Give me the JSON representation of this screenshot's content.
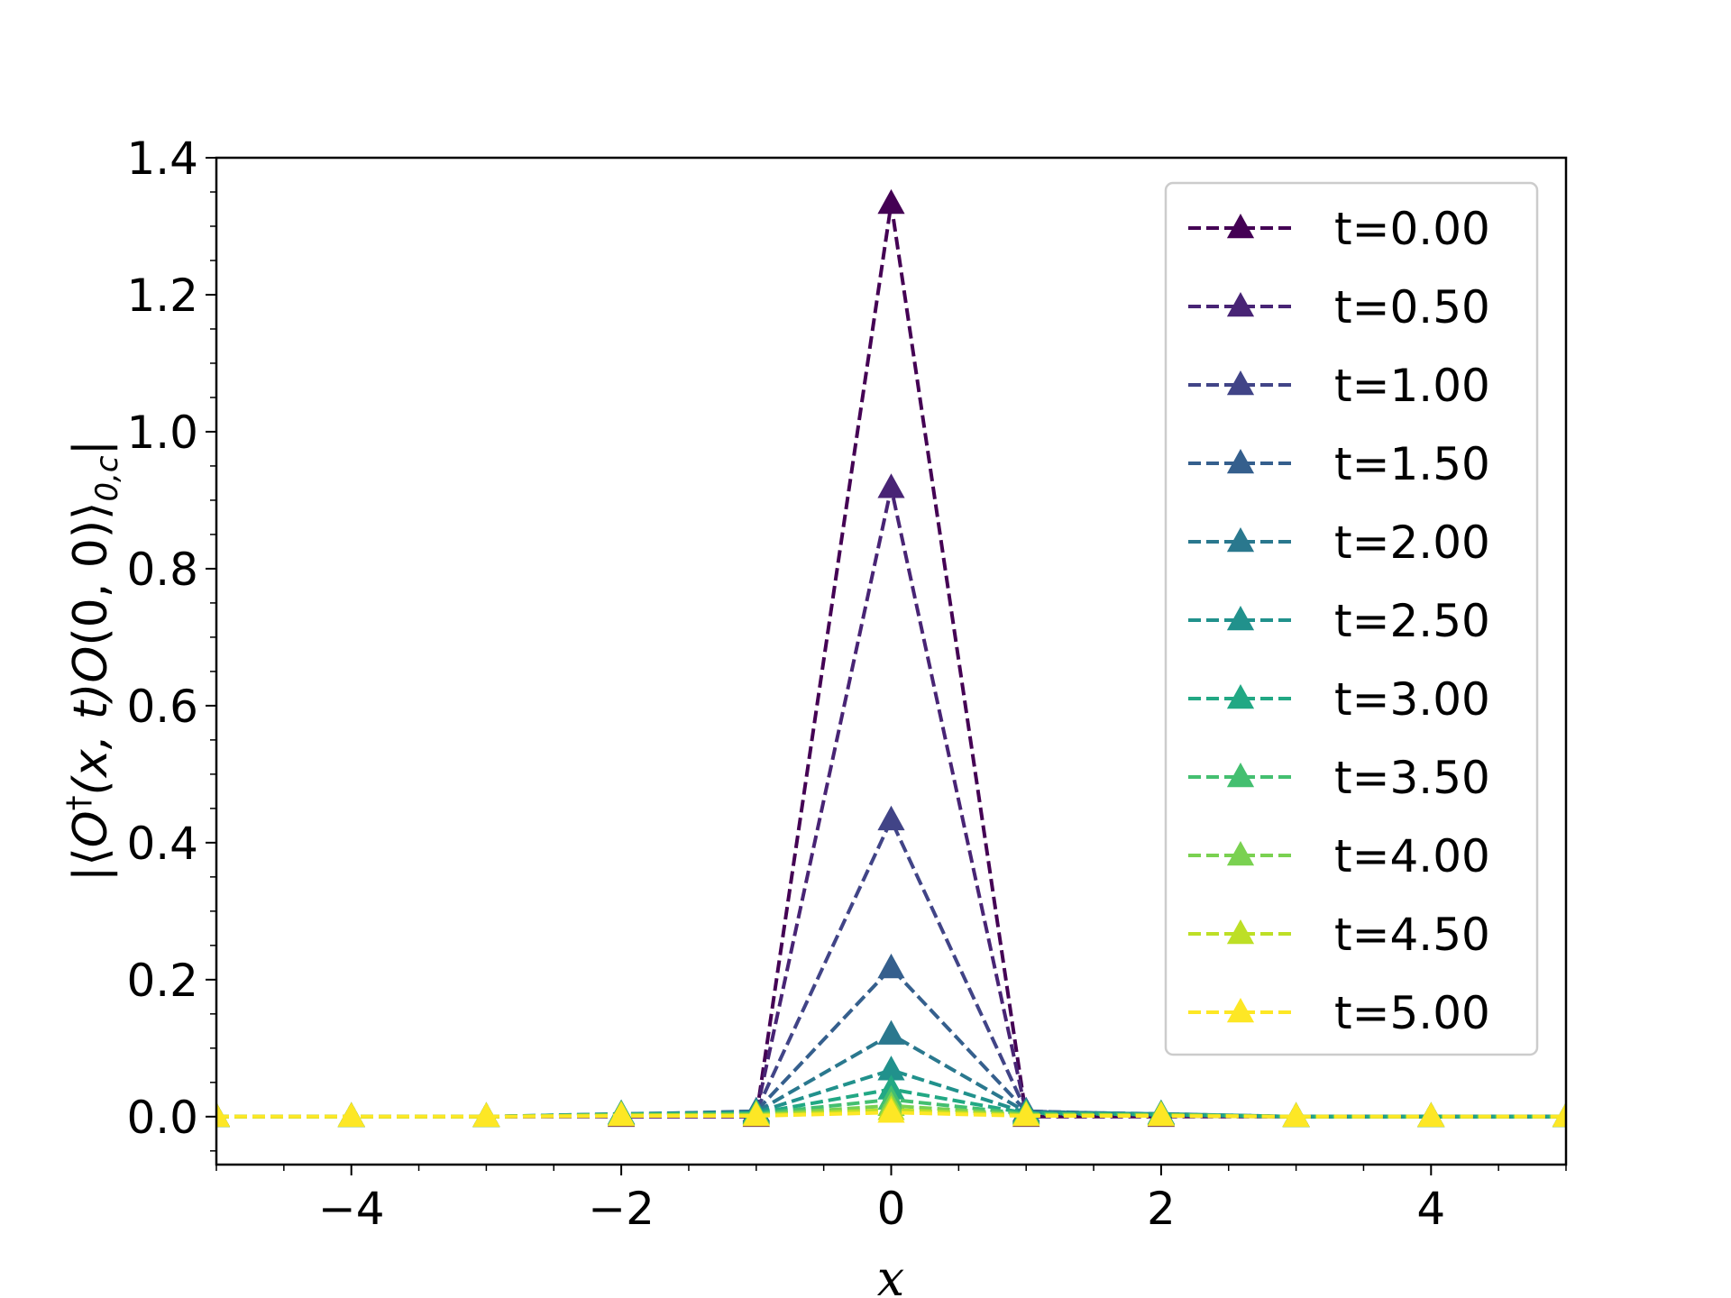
{
  "chart_data": {
    "type": "line",
    "title": "",
    "xlabel": "x",
    "ylabel": "|⟨O†(x, t)O(0, 0)⟩0,c|",
    "ylabel_parts": {
      "open": "|⟨",
      "op1": "O",
      "dagger": "†",
      "args1": "(x, t)",
      "op2": "O",
      "args2": "(0, 0)⟩",
      "sub": "0,c",
      "close": "|"
    },
    "xlim": [
      -5,
      5
    ],
    "ylim": [
      -0.07,
      1.4
    ],
    "xticks": [
      -4,
      -2,
      0,
      2,
      4
    ],
    "xtick_labels": [
      "−4",
      "−2",
      "0",
      "2",
      "4"
    ],
    "yticks": [
      0.0,
      0.2,
      0.4,
      0.6,
      0.8,
      1.0,
      1.2,
      1.4
    ],
    "ytick_labels": [
      "0.0",
      "0.2",
      "0.4",
      "0.6",
      "0.8",
      "1.0",
      "1.2",
      "1.4"
    ],
    "grid": false,
    "legend_position": "top-right",
    "line_style": "dashed",
    "marker": "triangle-up",
    "x": [
      -5,
      -4,
      -3,
      -2,
      -1,
      0,
      1,
      2,
      3,
      4,
      5
    ],
    "series": [
      {
        "name": "t=0.00",
        "color": "#440154",
        "values": [
          0,
          0,
          0,
          0,
          0,
          1.333,
          0,
          0,
          0,
          0,
          0
        ]
      },
      {
        "name": "t=0.50",
        "color": "#482475",
        "values": [
          0,
          0,
          0,
          0.001,
          0.005,
          0.918,
          0.005,
          0.001,
          0,
          0,
          0
        ]
      },
      {
        "name": "t=1.00",
        "color": "#414487",
        "values": [
          0,
          0,
          0,
          0.002,
          0.008,
          0.433,
          0.008,
          0.002,
          0,
          0,
          0
        ]
      },
      {
        "name": "t=1.50",
        "color": "#355f8d",
        "values": [
          0,
          0,
          0,
          0.003,
          0.008,
          0.217,
          0.008,
          0.003,
          0,
          0,
          0
        ]
      },
      {
        "name": "t=2.00",
        "color": "#2a788e",
        "values": [
          0,
          0,
          0,
          0.004,
          0.007,
          0.12,
          0.007,
          0.004,
          0,
          0,
          0
        ]
      },
      {
        "name": "t=2.50",
        "color": "#21918c",
        "values": [
          0,
          0,
          0,
          0.004,
          0.006,
          0.068,
          0.006,
          0.004,
          0,
          0,
          0
        ]
      },
      {
        "name": "t=3.00",
        "color": "#22a884",
        "values": [
          0,
          0,
          0,
          0.003,
          0.005,
          0.04,
          0.005,
          0.003,
          0,
          0,
          0
        ]
      },
      {
        "name": "t=3.50",
        "color": "#44bf70",
        "values": [
          0,
          0,
          0,
          0.003,
          0.004,
          0.025,
          0.004,
          0.003,
          0,
          0,
          0
        ]
      },
      {
        "name": "t=4.00",
        "color": "#7ad151",
        "values": [
          0,
          0,
          0,
          0.002,
          0.003,
          0.016,
          0.003,
          0.002,
          0,
          0,
          0
        ]
      },
      {
        "name": "t=4.50",
        "color": "#bddf26",
        "values": [
          0,
          0,
          0,
          0.002,
          0.002,
          0.01,
          0.002,
          0.002,
          0,
          0,
          0
        ]
      },
      {
        "name": "t=5.00",
        "color": "#fde725",
        "values": [
          0,
          0,
          0,
          0.001,
          0.001,
          0.006,
          0.001,
          0.001,
          0,
          0,
          0
        ]
      }
    ]
  }
}
